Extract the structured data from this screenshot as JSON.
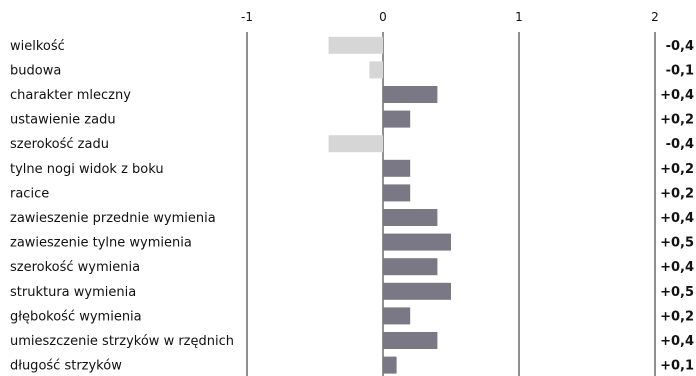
{
  "chart_data": {
    "type": "bar",
    "orientation": "horizontal",
    "categories": [
      "wielkość",
      "budowa",
      "charakter mleczny",
      "ustawienie zadu",
      "szerokość zadu",
      "tylne nogi widok z boku",
      "racice",
      "zawieszenie przednie wymienia",
      "zawieszenie tylne wymienia",
      "szerokość wymienia",
      "struktura wymienia",
      "głębokość wymienia",
      "umieszczenie strzyków w rzędnich",
      "długość strzyków"
    ],
    "values": [
      -0.4,
      -0.1,
      0.4,
      0.2,
      -0.4,
      0.2,
      0.2,
      0.4,
      0.5,
      0.4,
      0.5,
      0.2,
      0.4,
      0.1
    ],
    "value_labels": [
      "-0,4",
      "-0,1",
      "+0,4",
      "+0,2",
      "-0,4",
      "+0,2",
      "+0,2",
      "+0,4",
      "+0,5",
      "+0,4",
      "+0,5",
      "+0,2",
      "+0,4",
      "+0,1"
    ],
    "xticks": [
      -1,
      0,
      1,
      2
    ],
    "xtick_labels": [
      "-1",
      "0",
      "1",
      "2"
    ],
    "xlim": [
      -1,
      2
    ],
    "grid": "vertical",
    "colors": {
      "positive": "#7a7884",
      "negative": "#d6d6d6",
      "gridline": "#222222"
    }
  }
}
